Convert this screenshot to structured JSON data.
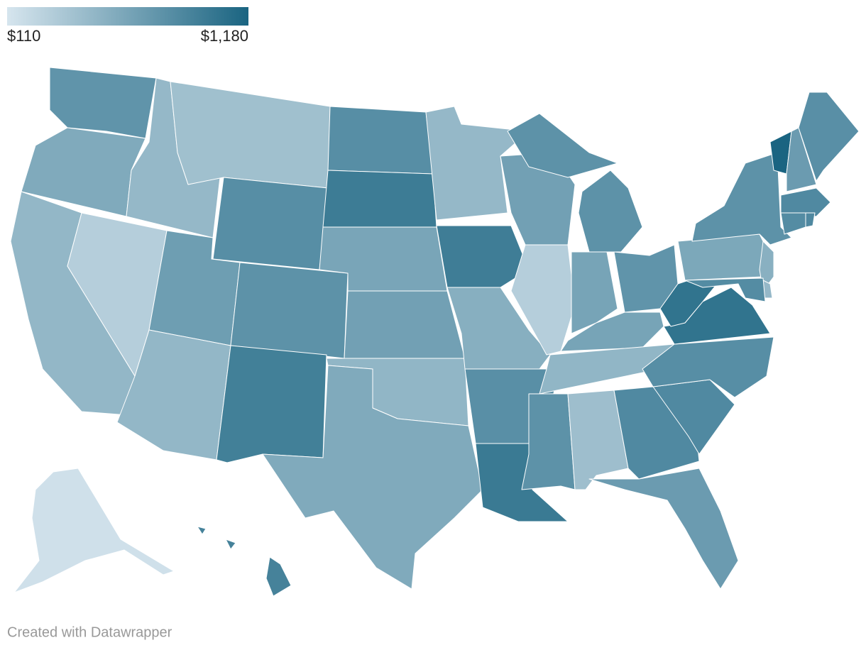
{
  "chart_data": {
    "type": "choropleth",
    "colors": [
      "#d6e5ee",
      "#1a6481"
    ],
    "range": [
      110,
      1180
    ],
    "ticks": [
      {
        "value": 110,
        "label": "$110"
      },
      {
        "value": 1180,
        "label": "$1,180"
      }
    ],
    "values": [
      780,
      600,
      490,
      300,
      480,
      420,
      830,
      700,
      800,
      490,
      950,
      830,
      980,
      640,
      680,
      500,
      600,
      480,
      970,
      560,
      820,
      1000,
      680,
      300,
      800,
      650,
      780,
      650,
      500,
      800,
      430,
      870,
      720,
      870,
      830,
      1050,
      1050,
      620,
      800,
      550,
      480,
      850,
      1180,
      720,
      820,
      870,
      850,
      880,
      150,
      930
    ],
    "credit": "Created with Datawrapper"
  }
}
